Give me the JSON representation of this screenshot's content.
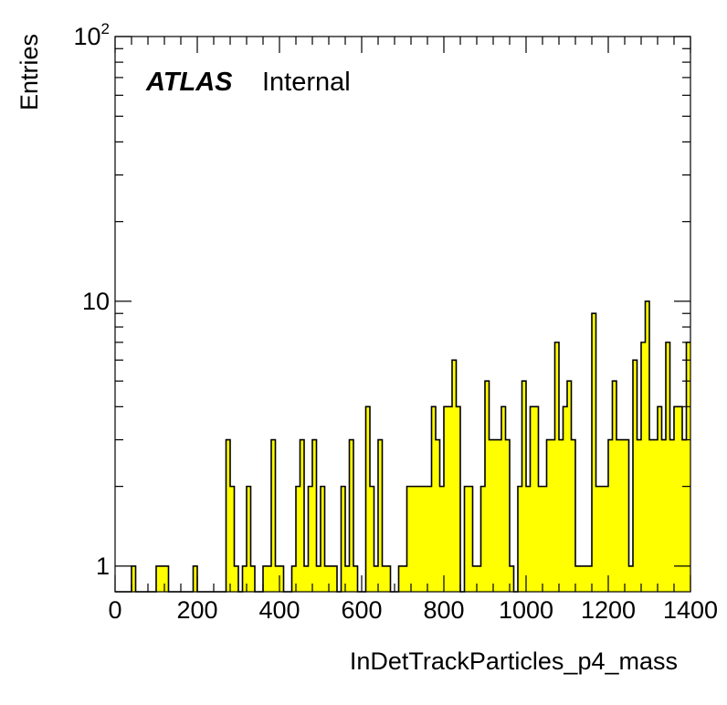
{
  "chart_data": {
    "type": "bar",
    "style": "histogram",
    "title": "",
    "label": {
      "experiment": "ATLAS",
      "status": "Internal"
    },
    "xlabel": "InDetTrackParticles_p4_mass",
    "ylabel": "Entries",
    "xlim": [
      0,
      1400
    ],
    "ylim": [
      0.8,
      100
    ],
    "yscale": "log",
    "grid": false,
    "bin_width": 10,
    "x_ticks": [
      "0",
      "200",
      "400",
      "600",
      "800",
      "1000",
      "1200",
      "1400"
    ],
    "y_ticks": [
      {
        "value": 1,
        "label": "1",
        "sup": ""
      },
      {
        "value": 10,
        "label": "10",
        "sup": ""
      },
      {
        "value": 100,
        "label": "10",
        "sup": "2"
      }
    ],
    "fill_color": "#ffff00",
    "line_color": "#000000",
    "counts": [
      0,
      0,
      0,
      0,
      1,
      0,
      0,
      0,
      0,
      0,
      1,
      1,
      1,
      0,
      0,
      0,
      0,
      0,
      0,
      1,
      0,
      0,
      0,
      0,
      0,
      0,
      0,
      3,
      2,
      1,
      0,
      1,
      2,
      1,
      0,
      0,
      1,
      1,
      3,
      1,
      1,
      0,
      0,
      1,
      2,
      3,
      1,
      2,
      3,
      1,
      2,
      1,
      1,
      1,
      0,
      2,
      1,
      3,
      1,
      0,
      0,
      4,
      2,
      1,
      3,
      1,
      1,
      0,
      0,
      1,
      1,
      2,
      2,
      2,
      2,
      2,
      2,
      4,
      3,
      2,
      4,
      4,
      6,
      4,
      0,
      2,
      2,
      1,
      1,
      2,
      5,
      3,
      3,
      3,
      4,
      3,
      1,
      0,
      2,
      5,
      2,
      4,
      4,
      2,
      2,
      3,
      3,
      7,
      3,
      4,
      5,
      3,
      1,
      1,
      1,
      1,
      9,
      2,
      2,
      2,
      3,
      5,
      3,
      3,
      3,
      1,
      6,
      3,
      7,
      10,
      3,
      3,
      4,
      3,
      7,
      3,
      4,
      4,
      3,
      7
    ]
  }
}
